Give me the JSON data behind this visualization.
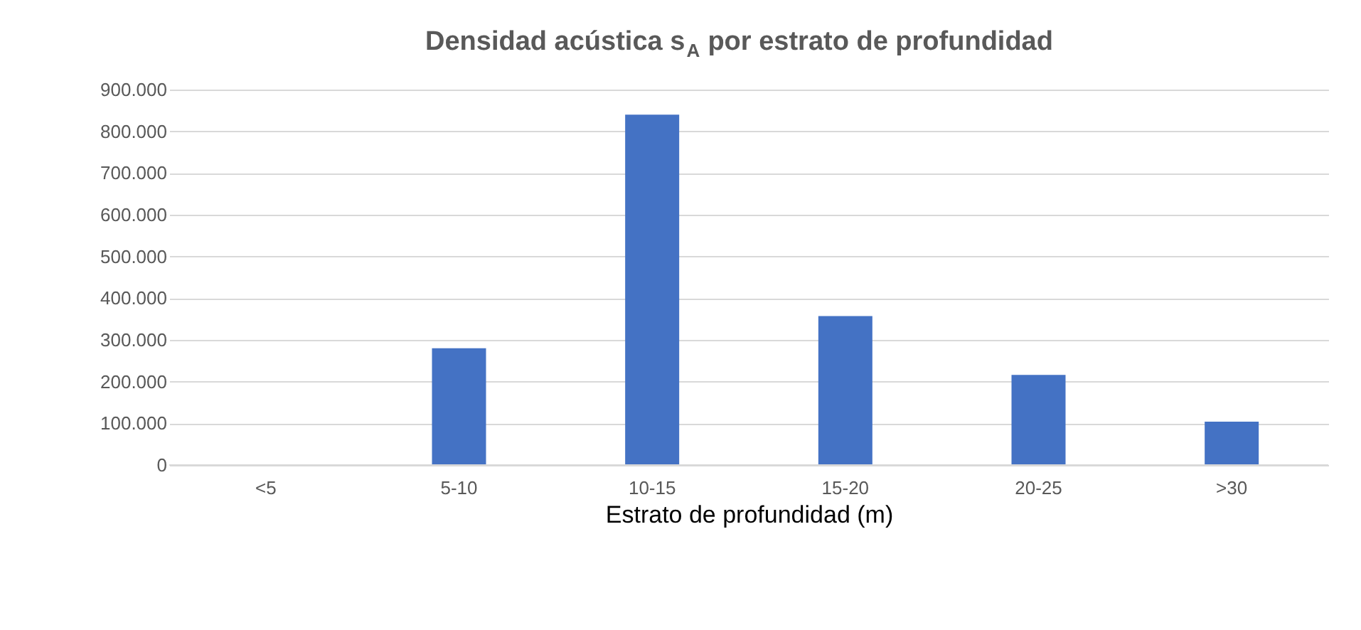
{
  "chart_data": {
    "type": "bar",
    "title": "Densidad acústica s$_{A}$ por estrato de profundidad",
    "xlabel": "Estrato de profundidad (m)",
    "categories": [
      "<5",
      "5-10",
      "10-15",
      "15-20",
      "20-25",
      ">30"
    ],
    "values": [
      0,
      280000,
      840000,
      357000,
      216000,
      104000
    ],
    "color": "#4472c4",
    "ylim": [
      0,
      900000
    ],
    "yticks": [
      {
        "value": 0,
        "label": "0"
      },
      {
        "value": 100000,
        "label": "100.000"
      },
      {
        "value": 200000,
        "label": "200.000"
      },
      {
        "value": 300000,
        "label": "300.000"
      },
      {
        "value": 400000,
        "label": "400.000"
      },
      {
        "value": 500000,
        "label": "500.000"
      },
      {
        "value": 600000,
        "label": "600.000"
      },
      {
        "value": 700000,
        "label": "700.000"
      },
      {
        "value": 800000,
        "label": "800.000"
      },
      {
        "value": 900000,
        "label": "900.000"
      }
    ],
    "grid": "y"
  }
}
